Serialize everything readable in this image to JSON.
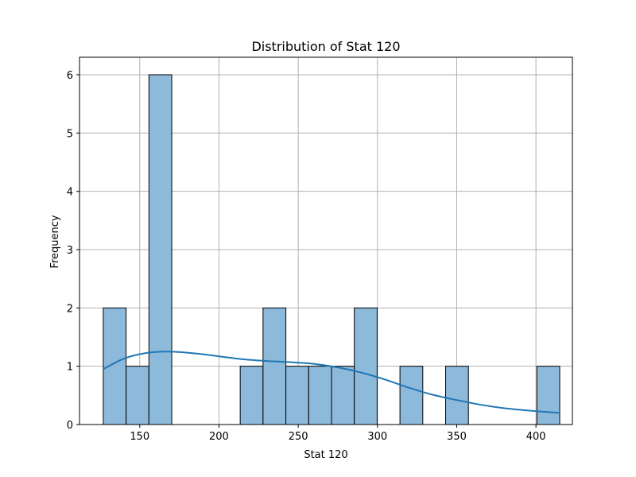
{
  "chart_data": {
    "type": "bar",
    "title": "Distribution of Stat 120",
    "xlabel": "Stat 120",
    "ylabel": "Frequency",
    "xlim": [
      112,
      423
    ],
    "ylim": [
      0,
      6.3
    ],
    "xticks": [
      150,
      200,
      250,
      300,
      350,
      400
    ],
    "yticks": [
      0,
      1,
      2,
      3,
      4,
      5,
      6
    ],
    "grid": true,
    "bin_edges": [
      127,
      141.4,
      155.8,
      170.2,
      184.6,
      199,
      213.4,
      227.8,
      242.2,
      256.6,
      271,
      285.4,
      299.8,
      314.2,
      328.6,
      343,
      357.4,
      371.8,
      386.2,
      400.6,
      415
    ],
    "counts": [
      2,
      1,
      6,
      0,
      0,
      0,
      1,
      2,
      1,
      1,
      1,
      2,
      0,
      1,
      0,
      1,
      0,
      0,
      0,
      1
    ],
    "bar_color": "#8DB9DB",
    "edge_color": "#000000",
    "kde": {
      "color": "#1f77b4",
      "x": [
        127,
        140,
        155,
        170,
        185,
        200,
        215,
        230,
        245,
        260,
        275,
        290,
        305,
        320,
        335,
        350,
        365,
        380,
        395,
        415
      ],
      "y": [
        0.95,
        1.13,
        1.23,
        1.25,
        1.22,
        1.17,
        1.12,
        1.09,
        1.07,
        1.04,
        0.98,
        0.89,
        0.77,
        0.63,
        0.51,
        0.42,
        0.34,
        0.28,
        0.24,
        0.2
      ]
    }
  }
}
